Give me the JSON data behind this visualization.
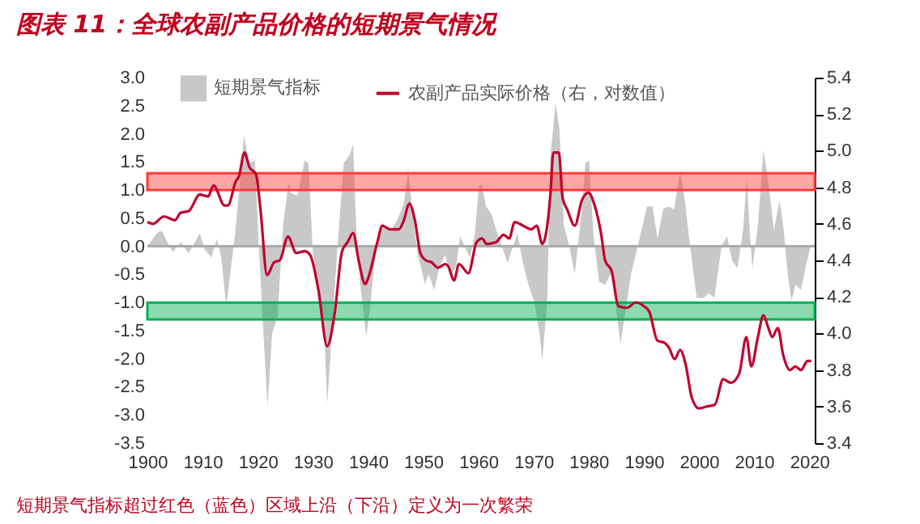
{
  "chart_data": {
    "type": "area",
    "title": "图表 11：全球农副产品价格的短期景气情况",
    "annotations": [
      "短期景气指标超过红色（蓝色）区域上沿（下沿）定义为一次繁荣"
    ],
    "series": [
      {
        "name": "短期景气指标",
        "color": "#c8c8c8",
        "x": [
          1900,
          1901.7,
          1902.6,
          1904,
          1904.6,
          1906,
          1907.5,
          1909.5,
          1910.4,
          1911.6,
          1912.6,
          1913.4,
          1914.3,
          1915,
          1915.8,
          1916.8,
          1917.5,
          1918.5,
          1919.5,
          1920.2,
          1921.2,
          1921.8,
          1922.6,
          1923.6,
          1924.6,
          1925.6,
          1926,
          1927.2,
          1928.5,
          1929.2,
          1930,
          1931,
          1932,
          1932.6,
          1933.4,
          1934.4,
          1935.6,
          1936.7,
          1937.3,
          1938,
          1938.7,
          1939.7,
          1940.4,
          1941.5,
          1942.6,
          1944.1,
          1945.3,
          1946.5,
          1947.3,
          1948,
          1949,
          1949.7,
          1950.3,
          1951,
          1952,
          1953,
          1954,
          1955,
          1956,
          1956.7,
          1957.5,
          1958.5,
          1959.4,
          1960.1,
          1960.6,
          1961.4,
          1962.4,
          1963.3,
          1964.5,
          1965.3,
          1966.3,
          1967.1,
          1968.1,
          1969.1,
          1970.1,
          1971.1,
          1971.6,
          1972.5,
          1973.1,
          1974,
          1974.7,
          1975.5,
          1976.5,
          1977.5,
          1978.8,
          1979.4,
          1980.1,
          1980.9,
          1981.9,
          1983,
          1984,
          1984.8,
          1985.8,
          1986.8,
          1987.7,
          1989.2,
          1990.6,
          1991.6,
          1992.5,
          1993.5,
          1994.5,
          1995.5,
          1996.6,
          1997.4,
          1998.4,
          1999.6,
          2000.9,
          2001.8,
          2002.8,
          2004.1,
          2005.1,
          2006,
          2007,
          2008,
          2008.7,
          2009.2,
          2009.7,
          2010.7,
          2011.7,
          2012.6,
          2013.6,
          2014.6,
          2015.3,
          2016.1,
          2016.8,
          2017.5,
          2018.5,
          2019.5,
          2020.3
        ],
        "values": [
          0,
          0.23,
          0.28,
          0,
          -0.1,
          0.07,
          -0.12,
          0.23,
          -0.06,
          -0.2,
          0.13,
          -0.2,
          -1.07,
          -0.5,
          0.13,
          1.14,
          1.96,
          1.48,
          1.53,
          0,
          -1.84,
          -2.85,
          -1.55,
          -1.26,
          0.37,
          1.14,
          0.95,
          0.9,
          1.53,
          1.48,
          -0.1,
          -0.78,
          -1.36,
          -2.8,
          -1.64,
          -0.1,
          1.48,
          1.63,
          1.82,
          0,
          -0.78,
          -1.6,
          -1.07,
          0,
          0.42,
          0.28,
          0.47,
          0.76,
          1.38,
          0.66,
          -0.15,
          -0.4,
          -0.68,
          -0.49,
          -0.78,
          -0.35,
          -0.15,
          -0.54,
          -0.35,
          0.18,
          0,
          -0.2,
          0.23,
          1.07,
          1.1,
          0.71,
          0.57,
          0.28,
          -0.06,
          -0.3,
          0,
          0.23,
          -0.3,
          -0.68,
          -0.97,
          -1.55,
          -2.03,
          -0.97,
          1.63,
          2.54,
          2.1,
          0.38,
          0,
          -0.49,
          0.66,
          1.48,
          1.53,
          0.18,
          -0.63,
          -0.68,
          -0.49,
          -0.97,
          -1.74,
          -1.07,
          -0.49,
          0.13,
          0.71,
          0.71,
          0.13,
          0.66,
          0.71,
          0.66,
          1.34,
          0.86,
          0,
          -0.92,
          -0.92,
          -0.83,
          -0.92,
          0,
          0.18,
          -0.25,
          -0.39,
          0.28,
          1.24,
          0.28,
          -0.39,
          0.38,
          1.72,
          1.14,
          0.28,
          0.81,
          0.38,
          -0.49,
          -0.97,
          -0.68,
          -0.78,
          -0.3,
          0
        ]
      },
      {
        "name": "农副产品实际价格（右，对数值）",
        "type": "line",
        "axis": "y2",
        "color": "#c0002f",
        "x": [
          1900,
          1901,
          1903,
          1905,
          1906,
          1907.5,
          1909.5,
          1911,
          1912,
          1914,
          1914.6,
          1916,
          1916.6,
          1917.6,
          1918.5,
          1919.7,
          1920.5,
          1921.7,
          1923,
          1924,
          1925.5,
          1927,
          1928.5,
          1929.5,
          1931,
          1932.6,
          1934,
          1935.3,
          1936.3,
          1937.3,
          1938.3,
          1939.5,
          1940,
          1941.7,
          1942.6,
          1944,
          1945.6,
          1946.5,
          1947.5,
          1948.5,
          1949.5,
          1950.5,
          1951.5,
          1952.7,
          1954,
          1954.5,
          1955.6,
          1956.5,
          1958.2,
          1959.7,
          1960.7,
          1961.5,
          1963.2,
          1964.6,
          1965.6,
          1966.6,
          1968.1,
          1969.6,
          1970.6,
          1971.6,
          1972.3,
          1973.1,
          1973.6,
          1974.6,
          1975.3,
          1976.1,
          1977.5,
          1978.8,
          1980,
          1981,
          1982.3,
          1983,
          1984.2,
          1985.4,
          1986.9,
          1988.6,
          1990,
          1991,
          1992.5,
          1993.7,
          1994.6,
          1995.6,
          1996.6,
          1997.6,
          1998.7,
          2000,
          2001.4,
          2002.9,
          2004.4,
          2005.8,
          2007.3,
          2008.6,
          2009.5,
          2010.7,
          2011.7,
          2012.6,
          2013.3,
          2014.3,
          2015.3,
          2016.5,
          2017.5,
          2018.5,
          2019.7,
          2020.4
        ],
        "values": [
          4.61,
          4.6,
          4.64,
          4.62,
          4.66,
          4.67,
          4.76,
          4.75,
          4.81,
          4.7,
          4.7,
          4.83,
          4.86,
          4.99,
          4.91,
          4.87,
          4.68,
          4.32,
          4.39,
          4.4,
          4.53,
          4.44,
          4.45,
          4.43,
          4.24,
          3.93,
          4.12,
          4.45,
          4.5,
          4.55,
          4.4,
          4.27,
          4.3,
          4.5,
          4.59,
          4.57,
          4.57,
          4.62,
          4.71,
          4.62,
          4.44,
          4.4,
          4.39,
          4.36,
          4.38,
          4.37,
          4.29,
          4.38,
          4.33,
          4.5,
          4.52,
          4.49,
          4.5,
          4.54,
          4.52,
          4.61,
          4.59,
          4.57,
          4.59,
          4.49,
          4.55,
          4.77,
          4.99,
          4.99,
          4.74,
          4.68,
          4.59,
          4.73,
          4.77,
          4.71,
          4.54,
          4.4,
          4.34,
          4.15,
          4.14,
          4.17,
          4.15,
          4.12,
          3.96,
          3.95,
          3.92,
          3.86,
          3.91,
          3.83,
          3.65,
          3.59,
          3.6,
          3.61,
          3.75,
          3.73,
          3.78,
          3.98,
          3.82,
          3.98,
          4.1,
          4.03,
          3.98,
          4.03,
          3.88,
          3.8,
          3.82,
          3.8,
          3.85,
          3.85
        ]
      }
    ],
    "xlim": [
      1900,
      2021
    ],
    "xticks": [
      1900,
      1910,
      1920,
      1930,
      1940,
      1950,
      1960,
      1970,
      1980,
      1990,
      2000,
      2010,
      2020
    ],
    "ylim": [
      -3.5,
      3
    ],
    "yticks": [
      {
        "value": -3.5,
        "label": "-3.5"
      },
      {
        "value": -3,
        "label": "-3.0"
      },
      {
        "value": -2.5,
        "label": "-2.5"
      },
      {
        "value": -2,
        "label": "-2.0"
      },
      {
        "value": -1.5,
        "label": "-1.5"
      },
      {
        "value": -1,
        "label": "-1.0"
      },
      {
        "value": -0.5,
        "label": "-0.5"
      },
      {
        "value": 0,
        "label": "0.0"
      },
      {
        "value": 0.5,
        "label": "0.5"
      },
      {
        "value": 1,
        "label": "1.0"
      },
      {
        "value": 1.5,
        "label": "1.5"
      },
      {
        "value": 2,
        "label": "2.0"
      },
      {
        "value": 2.5,
        "label": "2.5"
      },
      {
        "value": 3,
        "label": "3.0"
      }
    ],
    "y2lim": [
      3.4,
      5.4
    ],
    "y2ticks": [
      {
        "value": 3.4,
        "label": "3.4"
      },
      {
        "value": 3.6,
        "label": "3.6"
      },
      {
        "value": 3.8,
        "label": "3.8"
      },
      {
        "value": 4,
        "label": "4.0"
      },
      {
        "value": 4.2,
        "label": "4.2"
      },
      {
        "value": 4.4,
        "label": "4.4"
      },
      {
        "value": 4.6,
        "label": "4.6"
      },
      {
        "value": 4.8,
        "label": "4.8"
      },
      {
        "value": 5,
        "label": "5.0"
      },
      {
        "value": 5.2,
        "label": "5.2"
      },
      {
        "value": 5.4,
        "label": "5.4"
      }
    ],
    "ref_lines": [
      {
        "axis": "y",
        "value": 0,
        "color": "#aaaaaa"
      }
    ],
    "bands": [
      {
        "axis": "y",
        "from": 1,
        "to": 1.3,
        "color": "#ff3b3b"
      },
      {
        "axis": "y",
        "from": -1.3,
        "to": -1,
        "color": "#00b050"
      }
    ],
    "legend": "top",
    "grid": false
  }
}
